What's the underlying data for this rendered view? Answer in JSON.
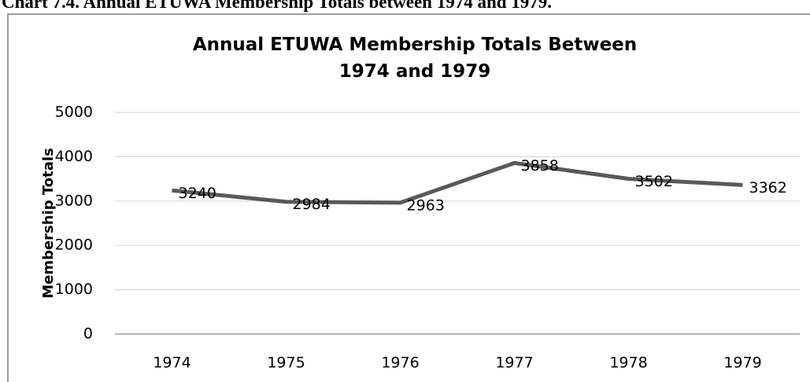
{
  "caption": "Chart 7.4. Annual ETUWA Membership Totals between 1974 and 1979.",
  "chart_data": {
    "type": "line",
    "title": "Annual ETUWA Membership Totals Between 1974 and 1979",
    "y_label": "Membership Totals",
    "categories": [
      "1974",
      "1975",
      "1976",
      "1977",
      "1978",
      "1979"
    ],
    "values": [
      3240,
      2984,
      2963,
      3858,
      3502,
      3362
    ],
    "color": "#595959",
    "ylim": [
      0,
      5000
    ],
    "yticks": [
      0,
      1000,
      2000,
      3000,
      4000,
      5000
    ],
    "grid": true
  }
}
